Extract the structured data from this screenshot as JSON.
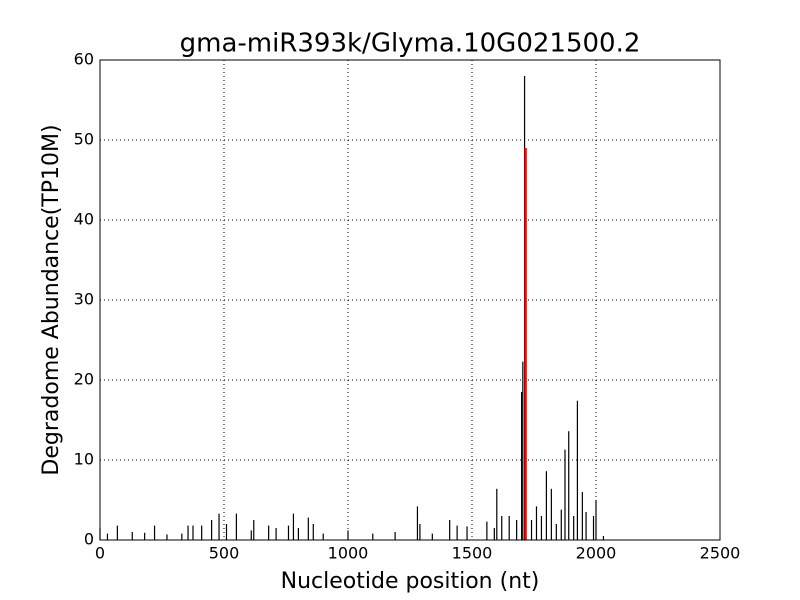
{
  "chart_data": {
    "type": "spike",
    "title": "gma-miR393k/Glyma.10G021500.2",
    "xlabel": "Nucleotide position (nt)",
    "ylabel": "Degradome Abundance(TP10M)",
    "x": [
      0,
      30,
      70,
      130,
      180,
      220,
      270,
      330,
      355,
      375,
      410,
      450,
      480,
      510,
      550,
      610,
      620,
      680,
      710,
      760,
      780,
      800,
      840,
      860,
      900,
      1000,
      1100,
      1190,
      1280,
      1290,
      1340,
      1410,
      1440,
      1480,
      1560,
      1590,
      1600,
      1620,
      1650,
      1680,
      1700,
      1705,
      1712,
      1740,
      1760,
      1780,
      1800,
      1820,
      1840,
      1860,
      1875,
      1890,
      1910,
      1925,
      1945,
      1960,
      1990,
      2000,
      2030
    ],
    "values": [
      1.5,
      0.8,
      1.8,
      1,
      0.9,
      1.8,
      0.7,
      0.8,
      1.8,
      1.8,
      1.8,
      2.5,
      3.3,
      2,
      3.3,
      1.2,
      2.5,
      1.8,
      1.5,
      1.8,
      3.3,
      1.5,
      2.8,
      2,
      0.8,
      1.2,
      0.8,
      1,
      4.2,
      2,
      0.8,
      2.5,
      1.8,
      1.7,
      2.3,
      1.5,
      6.4,
      3,
      3,
      2.5,
      18.5,
      22.3,
      58,
      2.5,
      4.2,
      3,
      8.6,
      6.4,
      2,
      3.8,
      11.3,
      13.6,
      3,
      17.4,
      6,
      3.5,
      3,
      5,
      0.5
    ],
    "color": "#000000",
    "highlight": {
      "x": 1716,
      "value": 49,
      "color": "#ff0000"
    },
    "xlim": [
      0,
      2500
    ],
    "xticks": [
      0,
      500,
      1000,
      1500,
      2000,
      2500
    ],
    "ylim": [
      0,
      60
    ],
    "yticks": [
      0,
      10,
      20,
      30,
      40,
      50,
      60
    ],
    "grid": true
  }
}
